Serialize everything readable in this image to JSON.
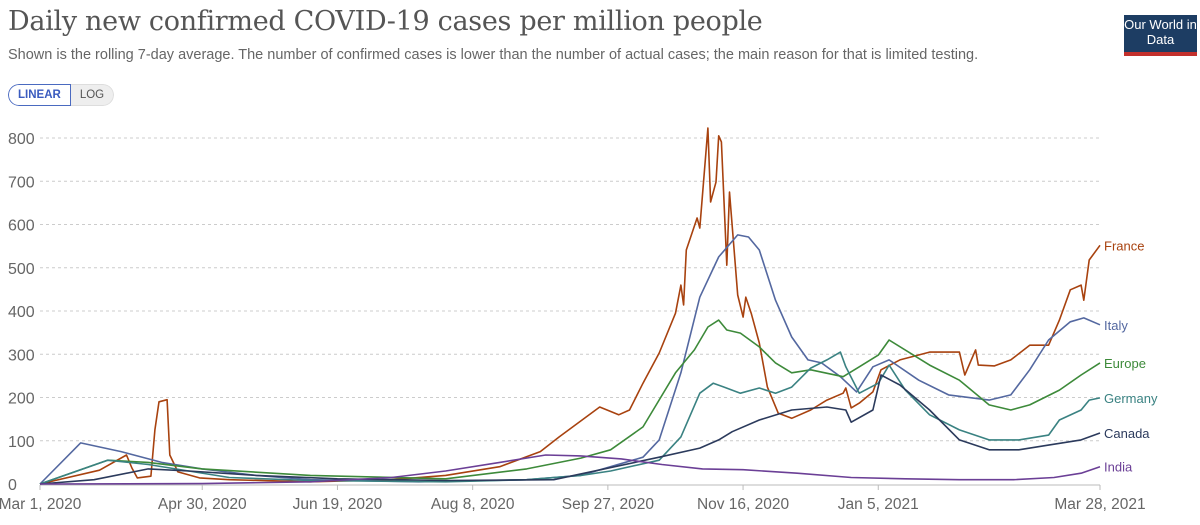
{
  "header": {
    "title": "Daily new confirmed COVID-19 cases per million people",
    "subtitle": "Shown is the rolling 7-day average. The number of confirmed cases is lower than the number of actual cases; the main reason for that is limited testing.",
    "logo": "Our World in Data"
  },
  "toggle": {
    "linear": "LINEAR",
    "log": "LOG"
  },
  "chart_data": {
    "type": "line",
    "title": "Daily new confirmed COVID-19 cases per million people",
    "ylim": [
      0,
      800
    ],
    "yticks": [
      0,
      100,
      200,
      300,
      400,
      500,
      600,
      700,
      800
    ],
    "xrange_days": [
      0,
      392
    ],
    "xticks": [
      {
        "day": 0,
        "label": "Mar 1, 2020"
      },
      {
        "day": 60,
        "label": "Apr 30, 2020"
      },
      {
        "day": 110,
        "label": "Jun 19, 2020"
      },
      {
        "day": 160,
        "label": "Aug 8, 2020"
      },
      {
        "day": 210,
        "label": "Sep 27, 2020"
      },
      {
        "day": 260,
        "label": "Nov 16, 2020"
      },
      {
        "day": 310,
        "label": "Jan 5, 2021"
      },
      {
        "day": 392,
        "label": "Mar 28, 2021"
      }
    ],
    "grid": true,
    "legend": "right-end-labels",
    "series": [
      {
        "name": "France",
        "color": "#a8420f",
        "points": [
          [
            0,
            0
          ],
          [
            22,
            32
          ],
          [
            32,
            67
          ],
          [
            34,
            37
          ],
          [
            36,
            14
          ],
          [
            41,
            18
          ],
          [
            42.5,
            125
          ],
          [
            44,
            190
          ],
          [
            47,
            195
          ],
          [
            48,
            67
          ],
          [
            51,
            28
          ],
          [
            59,
            14
          ],
          [
            70,
            10
          ],
          [
            100,
            5
          ],
          [
            130,
            10
          ],
          [
            150,
            20
          ],
          [
            170,
            40
          ],
          [
            185,
            75
          ],
          [
            192,
            109
          ],
          [
            207,
            178
          ],
          [
            214,
            160
          ],
          [
            218,
            171
          ],
          [
            223,
            233
          ],
          [
            229,
            303
          ],
          [
            235,
            395
          ],
          [
            237,
            460
          ],
          [
            238,
            414
          ],
          [
            239,
            541
          ],
          [
            243,
            615
          ],
          [
            244,
            592
          ],
          [
            247,
            823
          ],
          [
            248,
            652
          ],
          [
            250,
            698
          ],
          [
            251,
            805
          ],
          [
            252,
            791
          ],
          [
            254,
            506
          ],
          [
            255,
            675
          ],
          [
            258,
            437
          ],
          [
            260,
            386
          ],
          [
            261,
            432
          ],
          [
            263,
            395
          ],
          [
            266,
            326
          ],
          [
            269,
            224
          ],
          [
            273,
            164
          ],
          [
            278,
            152
          ],
          [
            285,
            171
          ],
          [
            291,
            194
          ],
          [
            297,
            210
          ],
          [
            298,
            222
          ],
          [
            300,
            176
          ],
          [
            303,
            187
          ],
          [
            308,
            213
          ],
          [
            311,
            264
          ],
          [
            318,
            287
          ],
          [
            329,
            305
          ],
          [
            340,
            305
          ],
          [
            342,
            252
          ],
          [
            346,
            310
          ],
          [
            347,
            275
          ],
          [
            353,
            273
          ],
          [
            359,
            287
          ],
          [
            366,
            321
          ],
          [
            373,
            321
          ],
          [
            377,
            379
          ],
          [
            381,
            449
          ],
          [
            385,
            460
          ],
          [
            386,
            425
          ],
          [
            388,
            518
          ],
          [
            392,
            552
          ]
        ]
      },
      {
        "name": "Italy",
        "color": "#5468a0",
        "points": [
          [
            0,
            0
          ],
          [
            15,
            95
          ],
          [
            30,
            75
          ],
          [
            45,
            50
          ],
          [
            60,
            35
          ],
          [
            80,
            20
          ],
          [
            100,
            10
          ],
          [
            140,
            5
          ],
          [
            180,
            10
          ],
          [
            200,
            20
          ],
          [
            223,
            62
          ],
          [
            229,
            102
          ],
          [
            237,
            257
          ],
          [
            244,
            432
          ],
          [
            251,
            525
          ],
          [
            258,
            576
          ],
          [
            262,
            571
          ],
          [
            266,
            541
          ],
          [
            272,
            425
          ],
          [
            278,
            340
          ],
          [
            284,
            287
          ],
          [
            289,
            280
          ],
          [
            296,
            248
          ],
          [
            302,
            213
          ],
          [
            308,
            271
          ],
          [
            314,
            287
          ],
          [
            325,
            240
          ],
          [
            336,
            206
          ],
          [
            351,
            194
          ],
          [
            359,
            206
          ],
          [
            366,
            264
          ],
          [
            373,
            333
          ],
          [
            381,
            375
          ],
          [
            386,
            384
          ],
          [
            392,
            368
          ]
        ]
      },
      {
        "name": "Europe",
        "color": "#3d8a3a",
        "points": [
          [
            0,
            0
          ],
          [
            25,
            55
          ],
          [
            40,
            50
          ],
          [
            60,
            35
          ],
          [
            100,
            20
          ],
          [
            150,
            12
          ],
          [
            180,
            35
          ],
          [
            200,
            60
          ],
          [
            211,
            79
          ],
          [
            223,
            132
          ],
          [
            235,
            257
          ],
          [
            242,
            310
          ],
          [
            247,
            363
          ],
          [
            251,
            379
          ],
          [
            254,
            356
          ],
          [
            259,
            349
          ],
          [
            266,
            317
          ],
          [
            272,
            280
          ],
          [
            278,
            257
          ],
          [
            285,
            264
          ],
          [
            297,
            248
          ],
          [
            303,
            271
          ],
          [
            310,
            298
          ],
          [
            314,
            333
          ],
          [
            329,
            275
          ],
          [
            340,
            240
          ],
          [
            351,
            183
          ],
          [
            359,
            171
          ],
          [
            366,
            183
          ],
          [
            377,
            217
          ],
          [
            385,
            252
          ],
          [
            392,
            280
          ]
        ]
      },
      {
        "name": "Germany",
        "color": "#3a8282",
        "points": [
          [
            0,
            0
          ],
          [
            25,
            55
          ],
          [
            40,
            45
          ],
          [
            55,
            30
          ],
          [
            70,
            15
          ],
          [
            100,
            8
          ],
          [
            150,
            5
          ],
          [
            180,
            10
          ],
          [
            200,
            20
          ],
          [
            211,
            30
          ],
          [
            229,
            55
          ],
          [
            237,
            109
          ],
          [
            244,
            210
          ],
          [
            249,
            233
          ],
          [
            253,
            224
          ],
          [
            259,
            210
          ],
          [
            266,
            222
          ],
          [
            272,
            210
          ],
          [
            278,
            224
          ],
          [
            285,
            268
          ],
          [
            291,
            287
          ],
          [
            296,
            305
          ],
          [
            298,
            271
          ],
          [
            303,
            210
          ],
          [
            310,
            233
          ],
          [
            314,
            275
          ],
          [
            320,
            217
          ],
          [
            329,
            160
          ],
          [
            340,
            125
          ],
          [
            351,
            102
          ],
          [
            362,
            102
          ],
          [
            373,
            113
          ],
          [
            377,
            148
          ],
          [
            385,
            171
          ],
          [
            388,
            194
          ],
          [
            392,
            199
          ]
        ]
      },
      {
        "name": "Canada",
        "color": "#2b3a5c",
        "points": [
          [
            0,
            0
          ],
          [
            20,
            10
          ],
          [
            40,
            35
          ],
          [
            55,
            30
          ],
          [
            80,
            20
          ],
          [
            110,
            12
          ],
          [
            150,
            8
          ],
          [
            190,
            10
          ],
          [
            229,
            62
          ],
          [
            244,
            83
          ],
          [
            251,
            102
          ],
          [
            256,
            121
          ],
          [
            266,
            148
          ],
          [
            278,
            171
          ],
          [
            291,
            178
          ],
          [
            298,
            171
          ],
          [
            300,
            143
          ],
          [
            308,
            171
          ],
          [
            311,
            252
          ],
          [
            318,
            229
          ],
          [
            329,
            171
          ],
          [
            340,
            102
          ],
          [
            351,
            79
          ],
          [
            362,
            79
          ],
          [
            373,
            90
          ],
          [
            385,
            102
          ],
          [
            392,
            118
          ]
        ]
      },
      {
        "name": "India",
        "color": "#6b3f96",
        "points": [
          [
            0,
            0
          ],
          [
            60,
            1
          ],
          [
            100,
            5
          ],
          [
            130,
            15
          ],
          [
            150,
            30
          ],
          [
            170,
            50
          ],
          [
            187,
            67
          ],
          [
            200,
            65
          ],
          [
            215,
            58
          ],
          [
            230,
            45
          ],
          [
            245,
            35
          ],
          [
            260,
            33
          ],
          [
            280,
            25
          ],
          [
            300,
            15
          ],
          [
            320,
            12
          ],
          [
            340,
            10
          ],
          [
            360,
            10
          ],
          [
            375,
            15
          ],
          [
            385,
            25
          ],
          [
            392,
            40
          ]
        ]
      }
    ]
  }
}
